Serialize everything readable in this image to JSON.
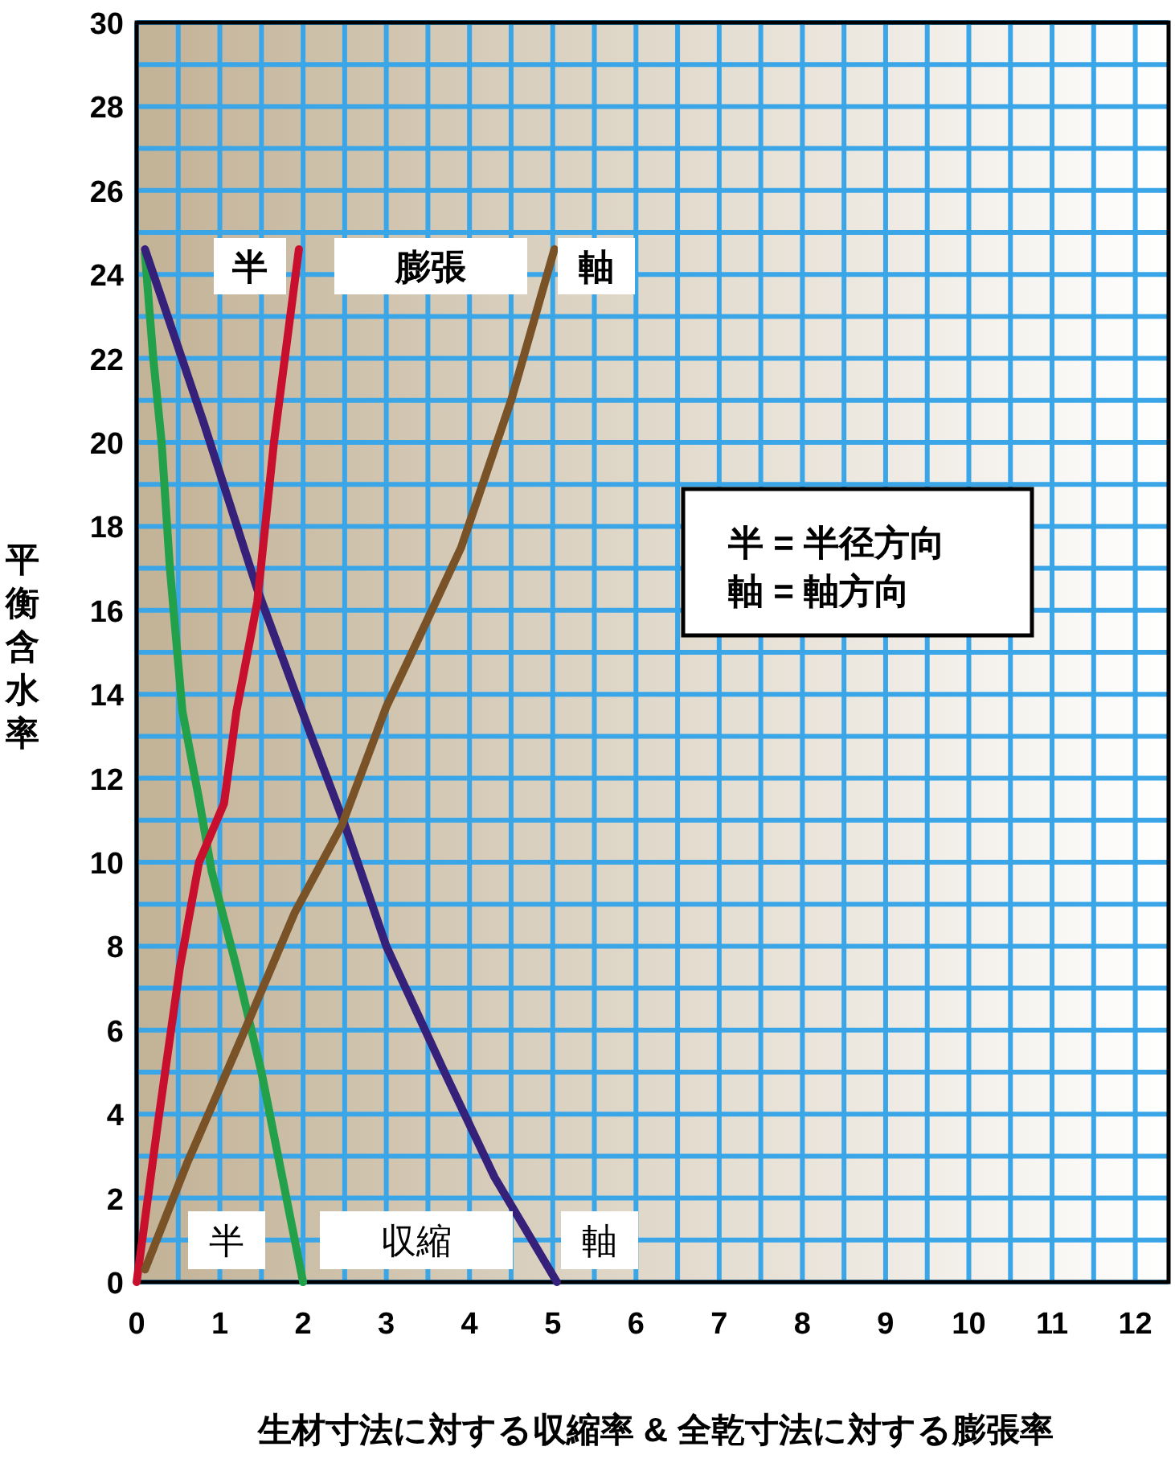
{
  "chart_data": {
    "type": "line",
    "xlabel": "生材寸法に対する収縮率 & 全乾寸法に対する膨張率",
    "ylabel": "平衡含水率",
    "xlim": [
      0,
      12.4
    ],
    "ylim": [
      0,
      30
    ],
    "xticks": [
      0,
      {
        "value": 0.5,
        "label": null
      },
      1,
      {
        "value": 1.5,
        "label": null
      },
      2,
      {
        "value": 2.5,
        "label": null
      },
      3,
      {
        "value": 3.5,
        "label": null
      },
      4,
      {
        "value": 4.5,
        "label": null
      },
      5,
      {
        "value": 5.5,
        "label": null
      },
      6,
      {
        "value": 6.5,
        "label": null
      },
      7,
      {
        "value": 7.5,
        "label": null
      },
      8,
      {
        "value": 8.5,
        "label": null
      },
      9,
      {
        "value": 9.5,
        "label": null
      },
      10,
      {
        "value": 10.5,
        "label": null
      },
      11,
      {
        "value": 11.5,
        "label": null
      },
      12
    ],
    "yticks": [
      0,
      {
        "value": 1,
        "label": null
      },
      2,
      {
        "value": 3,
        "label": null
      },
      4,
      {
        "value": 5,
        "label": null
      },
      6,
      {
        "value": 7,
        "label": null
      },
      8,
      {
        "value": 9,
        "label": null
      },
      10,
      {
        "value": 11,
        "label": null
      },
      12,
      {
        "value": 13,
        "label": null
      },
      14,
      {
        "value": 15,
        "label": null
      },
      16,
      {
        "value": 17,
        "label": null
      },
      18,
      {
        "value": 19,
        "label": null
      },
      20,
      {
        "value": 21,
        "label": null
      },
      22,
      {
        "value": 23,
        "label": null
      },
      24,
      {
        "value": 25,
        "label": null
      },
      26,
      {
        "value": 27,
        "label": null
      },
      28,
      {
        "value": 29,
        "label": null
      },
      30
    ],
    "grid": true,
    "series": [
      {
        "color": "#23a04a",
        "x": [
          0.1,
          0.2,
          0.3,
          0.4,
          0.55,
          0.75,
          0.9,
          1.2,
          1.5,
          1.75,
          2.0
        ],
        "values": [
          24.5,
          22,
          20,
          17,
          13.6,
          11.5,
          9.8,
          7.5,
          5,
          2.5,
          0
        ]
      },
      {
        "color": "#35207a",
        "x": [
          0.1,
          0.8,
          1.45,
          2.1,
          2.5,
          3.0,
          3.7,
          4.3,
          5.05
        ],
        "values": [
          24.6,
          20.5,
          16.5,
          13,
          10.9,
          8,
          5,
          2.5,
          0
        ]
      },
      {
        "color": "#c8102e",
        "x": [
          0,
          0.25,
          0.52,
          0.75,
          1.05,
          1.2,
          1.45,
          1.65,
          1.95
        ],
        "values": [
          0,
          3.7,
          7.5,
          10,
          11.4,
          13.6,
          16.2,
          20,
          24.6
        ]
      },
      {
        "color": "#7a5228",
        "x": [
          0.1,
          0.6,
          1.3,
          1.9,
          2.47,
          3.0,
          3.5,
          3.9,
          4.5,
          5.02
        ],
        "values": [
          0.3,
          2.8,
          6,
          8.8,
          10.9,
          13.7,
          15.8,
          17.5,
          21,
          24.6
        ]
      }
    ],
    "annotations": [
      "半",
      "膨張",
      "軸",
      "半",
      "収縮",
      "軸",
      "半 = 半径方向",
      "軸 = 軸方向"
    ]
  }
}
